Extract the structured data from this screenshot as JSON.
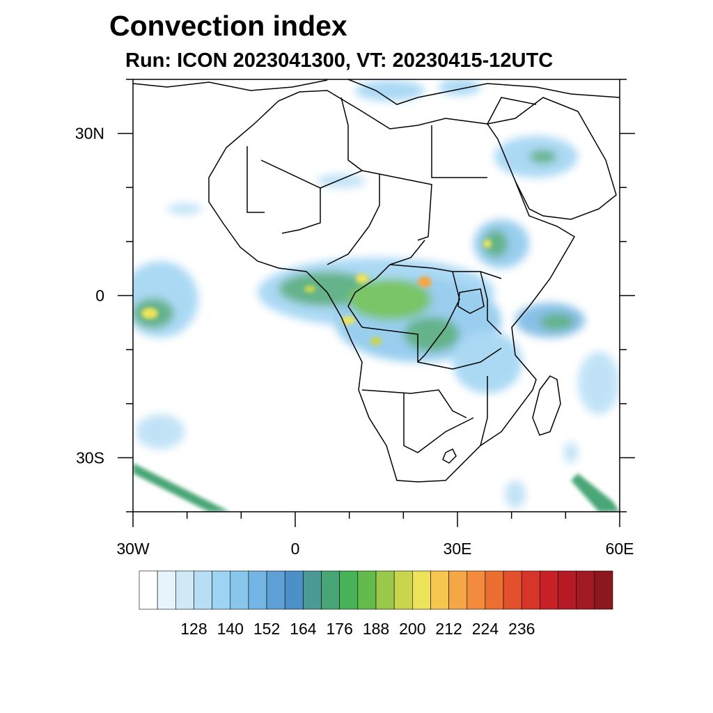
{
  "header": {
    "title": "Convection index",
    "subtitle": "Run: ICON 2023041300,  VT: 20230415-12UTC"
  },
  "axes": {
    "lon_labels": [
      "30W",
      "0",
      "30E",
      "60E"
    ],
    "lat_labels": [
      "30N",
      "0",
      "30S"
    ]
  },
  "colorbar": {
    "labels": [
      "128",
      "140",
      "152",
      "164",
      "176",
      "188",
      "200",
      "212",
      "224",
      "236"
    ],
    "colors": [
      "#ffffff",
      "#e6f4fb",
      "#cfe9f7",
      "#b7def5",
      "#9dd3f3",
      "#88c6ec",
      "#73b5e3",
      "#5fa1d7",
      "#4d8fc9",
      "#4b9a96",
      "#48a676",
      "#47b256",
      "#63bb4c",
      "#9ac84a",
      "#c9d64d",
      "#ece35a",
      "#f6c64f",
      "#f5a745",
      "#f28b3b",
      "#ec6e31",
      "#e3502c",
      "#d73529",
      "#c82027",
      "#b51a25",
      "#a01a21",
      "#8c171c"
    ]
  },
  "map": {
    "extent": {
      "lon": [
        -30,
        60
      ],
      "lat": [
        -40,
        40
      ]
    },
    "land_color": "#ffffff",
    "ocean_color": "#ffffff",
    "border_color": "#000000"
  }
}
